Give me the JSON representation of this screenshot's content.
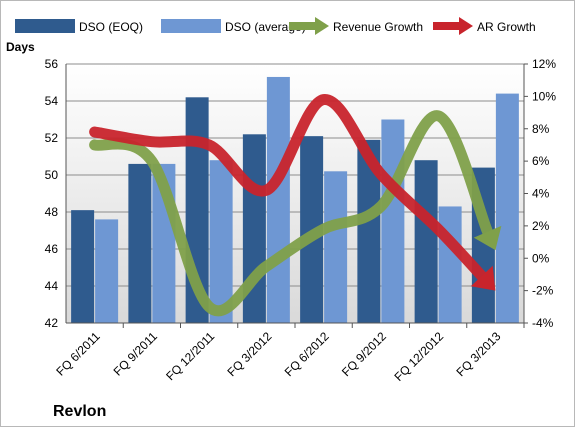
{
  "chart_data": {
    "type": "bar",
    "company": "Revlon",
    "ylabel": "Days",
    "categories": [
      "FQ 6/2011",
      "FQ 9/2011",
      "FQ 12/2011",
      "FQ 3/2012",
      "FQ 6/2012",
      "FQ 9/2012",
      "FQ 12/2012",
      "FQ 3/2013"
    ],
    "ylim": [
      42,
      56
    ],
    "yticks": [
      "42",
      "44",
      "46",
      "48",
      "50",
      "52",
      "54",
      "56"
    ],
    "y2lim": [
      -4,
      12
    ],
    "y2ticks": [
      "-4%",
      "-2%",
      "0%",
      "2%",
      "4%",
      "6%",
      "8%",
      "10%",
      "12%"
    ],
    "grid": true,
    "legend_position": "top",
    "series": [
      {
        "name": "DSO (EOQ)",
        "kind": "bar",
        "axis": "left",
        "color": "#2f5b8e",
        "values": [
          48.1,
          50.6,
          54.2,
          52.2,
          52.1,
          51.9,
          50.8,
          50.4
        ]
      },
      {
        "name": "DSO (average)",
        "kind": "bar",
        "axis": "left",
        "color": "#6e97d3",
        "values": [
          47.6,
          50.6,
          50.8,
          55.3,
          50.2,
          53.0,
          48.3,
          54.4
        ]
      },
      {
        "name": "Revenue Growth",
        "kind": "line",
        "axis": "right",
        "color": "#7fa04a",
        "values": [
          7.0,
          6.0,
          -3.0,
          -0.5,
          1.8,
          3.2,
          8.8,
          0.5
        ]
      },
      {
        "name": "AR Growth",
        "kind": "line",
        "axis": "right",
        "color": "#c8242c",
        "values": [
          7.8,
          7.2,
          7.0,
          4.2,
          9.8,
          5.2,
          1.8,
          -2.0
        ]
      }
    ]
  }
}
